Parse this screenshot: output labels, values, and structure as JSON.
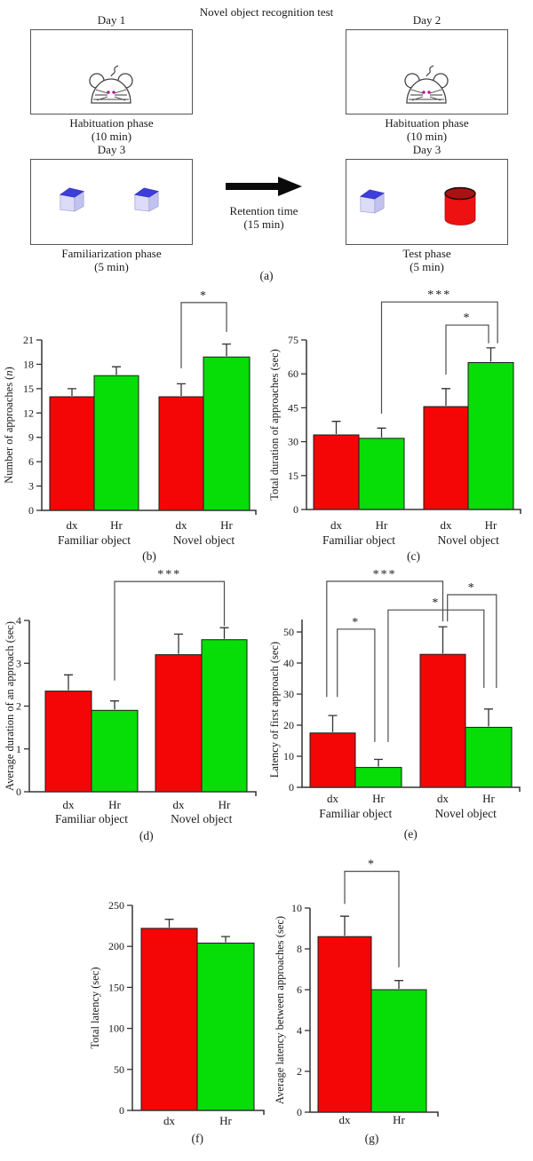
{
  "figure": {
    "title": "Novel object recognition test",
    "panel_a": {
      "label": "(a)",
      "boxes": [
        {
          "day": "Day 1",
          "phase": "Habituation phase",
          "duration": "(10 min)",
          "content": "mouse"
        },
        {
          "day": "Day 2",
          "phase": "Habituation phase",
          "duration": "(10 min)",
          "content": "mouse"
        },
        {
          "day": "Day 3",
          "phase": "Familiarization phase",
          "duration": "(5 min)",
          "content": "two-cubes"
        },
        {
          "day": "Day 3",
          "phase": "Test phase",
          "duration": "(5 min)",
          "content": "cube-cylinder"
        }
      ],
      "retention_line1": "Retention time",
      "retention_line2": "(15 min)"
    },
    "colors": {
      "red": "#f40606",
      "green": "#07dd07",
      "cube_top": "#3d3ddd",
      "cube_front": "#dcdcf8",
      "cube_side": "#c2c2f0",
      "cylinder_body": "#ee1111",
      "cylinder_top": "#a81212",
      "axis": "#333333",
      "bracket": "#4d4d4d"
    }
  },
  "chart_data": [
    {
      "id": "b",
      "type": "bar",
      "panel_label": "(b)",
      "ylabel": "Number of approaches (*n*)",
      "ylim": [
        0,
        21
      ],
      "yticks": [
        0,
        3,
        6,
        9,
        12,
        15,
        18,
        21
      ],
      "categories": [
        "dx",
        "Hr",
        "dx",
        "Hr"
      ],
      "group_labels": [
        "Familiar object",
        "Novel object"
      ],
      "values": [
        14.0,
        16.6,
        14.0,
        18.9
      ],
      "errors": [
        1.0,
        1.1,
        1.6,
        1.6
      ],
      "bar_colors": [
        "red",
        "green",
        "red",
        "green"
      ],
      "significance": [
        {
          "x1": 2,
          "x2": 3,
          "y": 25.6,
          "drop1": 17.5,
          "drop2": 22.0,
          "label": "*"
        }
      ]
    },
    {
      "id": "c",
      "type": "bar",
      "panel_label": "(c)",
      "ylabel": "Total duration of approaches (sec)",
      "ylim": [
        0,
        75
      ],
      "yticks": [
        0,
        15,
        30,
        45,
        60,
        75
      ],
      "categories": [
        "dx",
        "Hr",
        "dx",
        "Hr"
      ],
      "group_labels": [
        "Familiar object",
        "Novel object"
      ],
      "values": [
        33.0,
        31.5,
        45.5,
        65.0
      ],
      "errors": [
        6.0,
        4.5,
        8.0,
        6.5
      ],
      "bar_colors": [
        "red",
        "green",
        "red",
        "green"
      ],
      "significance": [
        {
          "x1": 1,
          "x2": 3.15,
          "y": 91.8,
          "drop1": 42.4,
          "drop2": 73.5,
          "label": "***"
        },
        {
          "x1": 2,
          "x2": 2.95,
          "y": 81.6,
          "drop1": 59.7,
          "drop2": 73.5,
          "label": "*"
        }
      ]
    },
    {
      "id": "d",
      "type": "bar",
      "panel_label": "(d)",
      "ylabel": "Average duration of an approach (sec)",
      "ylim": [
        0,
        4
      ],
      "yticks": [
        0,
        1,
        2,
        3,
        4
      ],
      "categories": [
        "dx",
        "Hr",
        "dx",
        "Hr"
      ],
      "group_labels": [
        "Familiar object",
        "Novel object"
      ],
      "values": [
        2.35,
        1.9,
        3.2,
        3.55
      ],
      "errors": [
        0.38,
        0.22,
        0.48,
        0.28
      ],
      "bar_colors": [
        "red",
        "green",
        "red",
        "green"
      ],
      "significance": [
        {
          "x1": 1,
          "x2": 3,
          "y": 4.91,
          "drop1": 2.6,
          "drop2": 3.87,
          "label": "***"
        }
      ]
    },
    {
      "id": "e",
      "type": "bar",
      "panel_label": "(e)",
      "ylabel": "Latency of first approach (sec)",
      "ylim": [
        0,
        50
      ],
      "yticks": [
        0,
        10,
        20,
        30,
        40,
        50
      ],
      "categories": [
        "dx",
        "Hr",
        "dx",
        "Hr"
      ],
      "group_labels": [
        "Familiar object",
        "Novel object"
      ],
      "values": [
        17.5,
        6.4,
        42.8,
        19.3
      ],
      "errors": [
        5.6,
        2.6,
        8.9,
        5.9
      ],
      "bar_colors": [
        "red",
        "green",
        "red",
        "green"
      ],
      "significance": [
        {
          "x1": -0.13,
          "x2": 2.0,
          "y": 66.3,
          "drop1": 29.1,
          "drop2": 53.4,
          "label": "***"
        },
        {
          "x1": 0.1,
          "x2": 0.92,
          "y": 50.9,
          "drop1": 29.1,
          "drop2": 14.6,
          "label": "*"
        },
        {
          "x1": 1.15,
          "x2": 2.9,
          "y": 57.1,
          "drop1": 14.6,
          "drop2": 32.0,
          "label": "*"
        },
        {
          "x1": 2.1,
          "x2": 3.17,
          "y": 62.0,
          "drop1": 53.4,
          "drop2": 32.0,
          "label": "*"
        }
      ]
    },
    {
      "id": "f",
      "type": "bar",
      "panel_label": "(f)",
      "ylabel": "Total latency (sec)",
      "ylim": [
        0,
        250
      ],
      "yticks": [
        0,
        50,
        100,
        150,
        200,
        250
      ],
      "categories": [
        "dx",
        "Hr"
      ],
      "group_labels": [],
      "values": [
        222,
        204
      ],
      "errors": [
        11,
        8
      ],
      "bar_colors": [
        "red",
        "green"
      ],
      "significance": []
    },
    {
      "id": "g",
      "type": "bar",
      "panel_label": "(g)",
      "ylabel": "Average latency between approaches (sec)",
      "ylim": [
        0,
        10
      ],
      "yticks": [
        0,
        2,
        4,
        6,
        8,
        10
      ],
      "categories": [
        "dx",
        "Hr"
      ],
      "group_labels": [],
      "values": [
        8.6,
        6.0
      ],
      "errors": [
        1.0,
        0.45
      ],
      "bar_colors": [
        "red",
        "green"
      ],
      "significance": [
        {
          "x1": 0,
          "x2": 1,
          "y": 11.8,
          "drop1": 10.2,
          "drop2": 7.1,
          "label": "*"
        }
      ]
    }
  ]
}
